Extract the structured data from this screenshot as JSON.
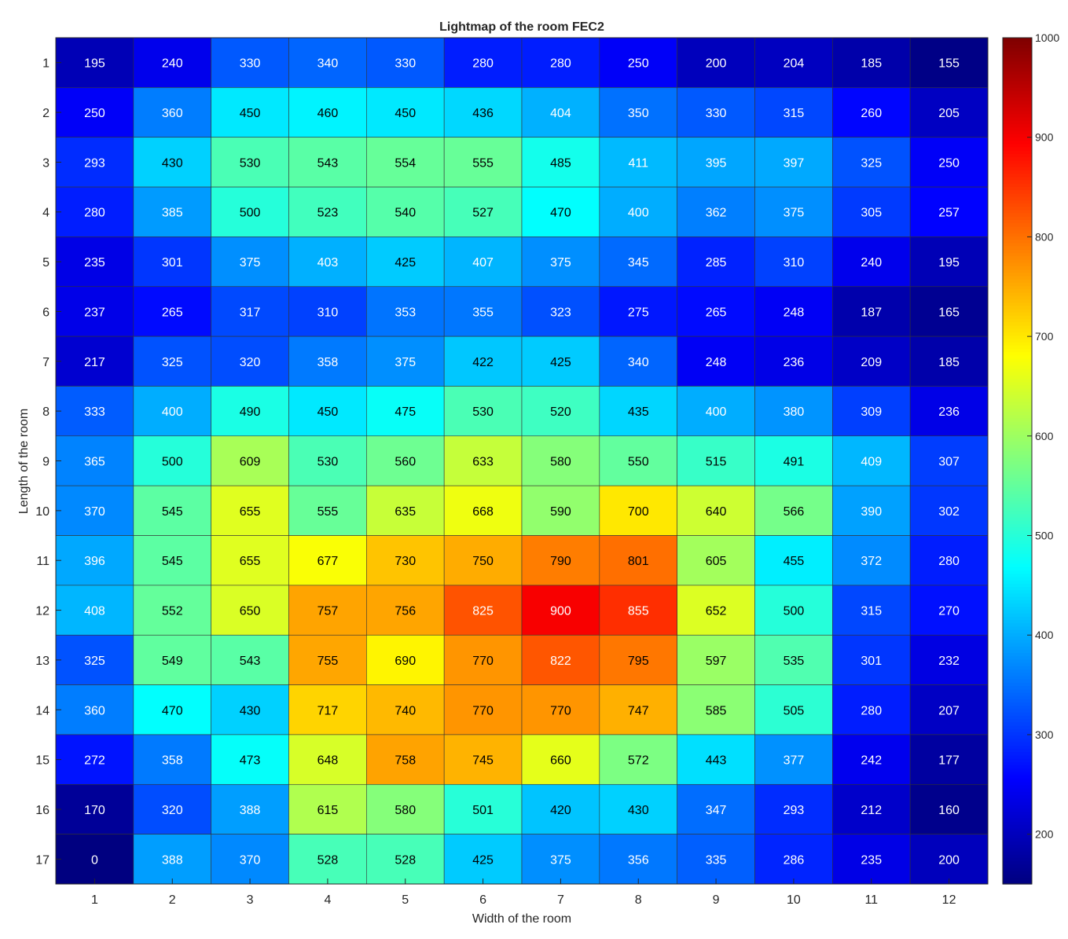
{
  "chart_data": {
    "type": "heatmap",
    "title": "Lightmap of the room FEC2",
    "xlabel": "Width of the room",
    "ylabel": "Length of the room",
    "x_categories": [
      "1",
      "2",
      "3",
      "4",
      "5",
      "6",
      "7",
      "8",
      "9",
      "10",
      "11",
      "12"
    ],
    "y_categories": [
      "1",
      "2",
      "3",
      "4",
      "5",
      "6",
      "7",
      "8",
      "9",
      "10",
      "11",
      "12",
      "13",
      "14",
      "15",
      "16",
      "17"
    ],
    "values": [
      [
        195,
        240,
        330,
        340,
        330,
        280,
        280,
        250,
        200,
        204,
        185,
        155
      ],
      [
        250,
        360,
        450,
        460,
        450,
        436,
        404,
        350,
        330,
        315,
        260,
        205
      ],
      [
        293,
        430,
        530,
        543,
        554,
        555,
        485,
        411,
        395,
        397,
        325,
        250
      ],
      [
        280,
        385,
        500,
        523,
        540,
        527,
        470,
        400,
        362,
        375,
        305,
        257
      ],
      [
        235,
        301,
        375,
        403,
        425,
        407,
        375,
        345,
        285,
        310,
        240,
        195
      ],
      [
        237,
        265,
        317,
        310,
        353,
        355,
        323,
        275,
        265,
        248,
        187,
        165
      ],
      [
        217,
        325,
        320,
        358,
        375,
        422,
        425,
        340,
        248,
        236,
        209,
        185
      ],
      [
        333,
        400,
        490,
        450,
        475,
        530,
        520,
        435,
        400,
        380,
        309,
        236
      ],
      [
        365,
        500,
        609,
        530,
        560,
        633,
        580,
        550,
        515,
        491,
        409,
        307
      ],
      [
        370,
        545,
        655,
        555,
        635,
        668,
        590,
        700,
        640,
        566,
        390,
        302
      ],
      [
        396,
        545,
        655,
        677,
        730,
        750,
        790,
        801,
        605,
        455,
        372,
        280
      ],
      [
        408,
        552,
        650,
        757,
        756,
        825,
        900,
        855,
        652,
        500,
        315,
        270
      ],
      [
        325,
        549,
        543,
        755,
        690,
        770,
        822,
        795,
        597,
        535,
        301,
        232
      ],
      [
        360,
        470,
        430,
        717,
        740,
        770,
        770,
        747,
        585,
        505,
        280,
        207
      ],
      [
        272,
        358,
        473,
        648,
        758,
        745,
        660,
        572,
        443,
        377,
        242,
        177
      ],
      [
        170,
        320,
        388,
        615,
        580,
        501,
        420,
        430,
        347,
        293,
        212,
        160
      ],
      [
        0,
        388,
        370,
        528,
        528,
        425,
        375,
        356,
        335,
        286,
        235,
        200
      ]
    ],
    "color_scale": {
      "colormap": "jet",
      "clim": [
        150,
        1000
      ],
      "ticks": [
        "200",
        "300",
        "400",
        "500",
        "600",
        "700",
        "800",
        "900",
        "1000"
      ]
    },
    "grid": true,
    "legend": "colorbar right"
  }
}
